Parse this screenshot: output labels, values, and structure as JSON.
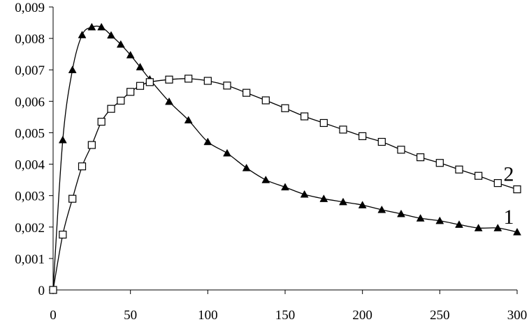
{
  "chart_data": {
    "type": "line",
    "xlim": [
      0,
      300
    ],
    "ylim": [
      0,
      0.009
    ],
    "x_ticks": [
      "0",
      "50",
      "100",
      "150",
      "200",
      "250",
      "300"
    ],
    "y_ticks": [
      "0",
      "0,001",
      "0,002",
      "0,003",
      "0,004",
      "0,005",
      "0,006",
      "0,007",
      "0,008",
      "0,009"
    ],
    "grid": false,
    "legend": "none",
    "series": [
      {
        "label": "1",
        "marker": "filled-triangle",
        "color": "#000000",
        "points": [
          [
            0,
            0
          ],
          [
            6.25,
            0.00477
          ],
          [
            12.5,
            0.007
          ],
          [
            18.75,
            0.00811
          ],
          [
            25,
            0.00836
          ],
          [
            31.25,
            0.00836
          ],
          [
            37.5,
            0.0081
          ],
          [
            43.75,
            0.00781
          ],
          [
            50,
            0.00747
          ],
          [
            56.25,
            0.00709
          ],
          [
            62.5,
            0.0067
          ],
          [
            75,
            0.00599
          ],
          [
            87.5,
            0.0054
          ],
          [
            100,
            0.00471
          ],
          [
            112.5,
            0.00435
          ],
          [
            125,
            0.00388
          ],
          [
            137.5,
            0.0035
          ],
          [
            150,
            0.00327
          ],
          [
            162.5,
            0.00304
          ],
          [
            175,
            0.0029
          ],
          [
            187.5,
            0.0028
          ],
          [
            200,
            0.0027
          ],
          [
            212.5,
            0.00255
          ],
          [
            225,
            0.00242
          ],
          [
            237.5,
            0.00228
          ],
          [
            250,
            0.0022
          ],
          [
            262.5,
            0.00208
          ],
          [
            275,
            0.00197
          ],
          [
            287.5,
            0.00197
          ],
          [
            300,
            0.00184
          ]
        ]
      },
      {
        "label": "2",
        "marker": "open-square",
        "color": "#000000",
        "points": [
          [
            0,
            0
          ],
          [
            6.25,
            0.00176
          ],
          [
            12.5,
            0.0029
          ],
          [
            18.75,
            0.00393
          ],
          [
            25,
            0.00461
          ],
          [
            31.25,
            0.00535
          ],
          [
            37.5,
            0.00576
          ],
          [
            43.75,
            0.00602
          ],
          [
            50,
            0.0063
          ],
          [
            56.25,
            0.00649
          ],
          [
            62.5,
            0.00661
          ],
          [
            75,
            0.00669
          ],
          [
            87.5,
            0.00672
          ],
          [
            100,
            0.00665
          ],
          [
            112.5,
            0.0065
          ],
          [
            125,
            0.00627
          ],
          [
            137.5,
            0.00603
          ],
          [
            150,
            0.00578
          ],
          [
            162.5,
            0.00552
          ],
          [
            175,
            0.00531
          ],
          [
            187.5,
            0.0051
          ],
          [
            200,
            0.00489
          ],
          [
            212.5,
            0.00471
          ],
          [
            225,
            0.00446
          ],
          [
            237.5,
            0.00422
          ],
          [
            250,
            0.00404
          ],
          [
            262.5,
            0.00383
          ],
          [
            275,
            0.00363
          ],
          [
            287.5,
            0.0034
          ],
          [
            300,
            0.0032
          ]
        ]
      }
    ]
  }
}
